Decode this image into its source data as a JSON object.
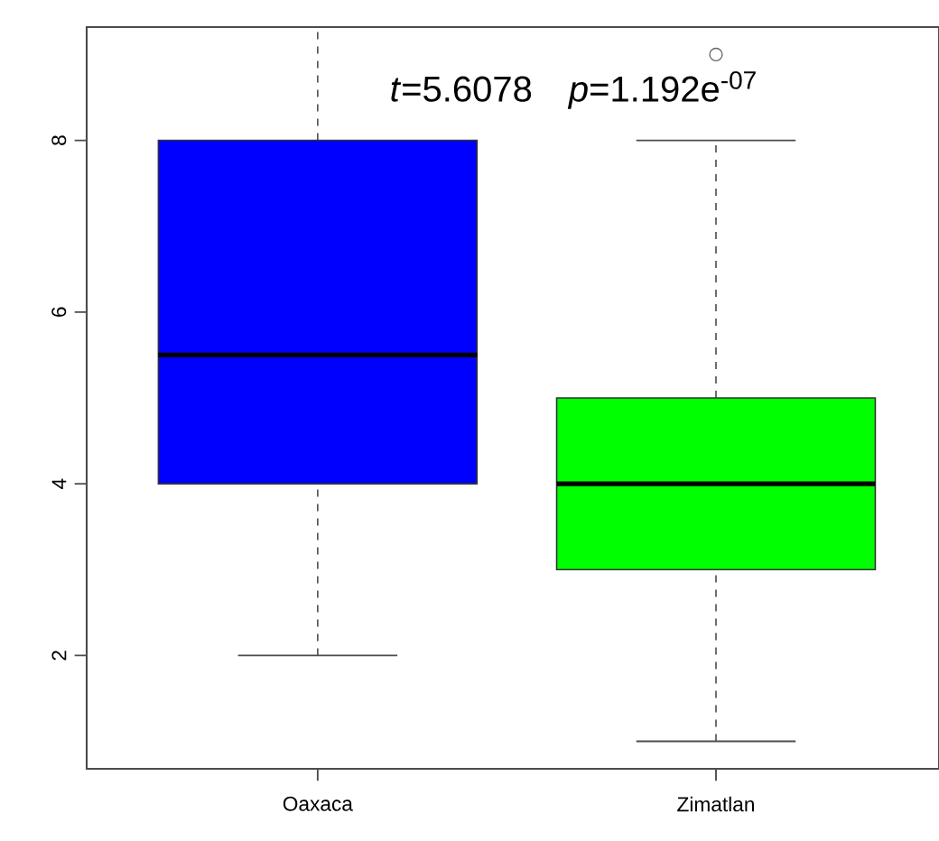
{
  "chart_data": {
    "type": "box",
    "categories": [
      "Oaxaca",
      "Zimatlan"
    ],
    "boxes": [
      {
        "low": 2,
        "q1": 4,
        "median": 5.5,
        "q3": 8,
        "high": 9.32
      },
      {
        "low": 1,
        "q1": 3,
        "median": 4,
        "q3": 5,
        "high": 8,
        "outliers": [
          9
        ]
      }
    ],
    "colors": [
      "#0000ff",
      "#00ff00"
    ],
    "ylim": [
      0.68,
      9.32
    ],
    "yticks": [
      2,
      4,
      6,
      8
    ],
    "annotations": [
      "*t*=5.6078",
      "*p*=1.192e$^{-07}$"
    ]
  }
}
